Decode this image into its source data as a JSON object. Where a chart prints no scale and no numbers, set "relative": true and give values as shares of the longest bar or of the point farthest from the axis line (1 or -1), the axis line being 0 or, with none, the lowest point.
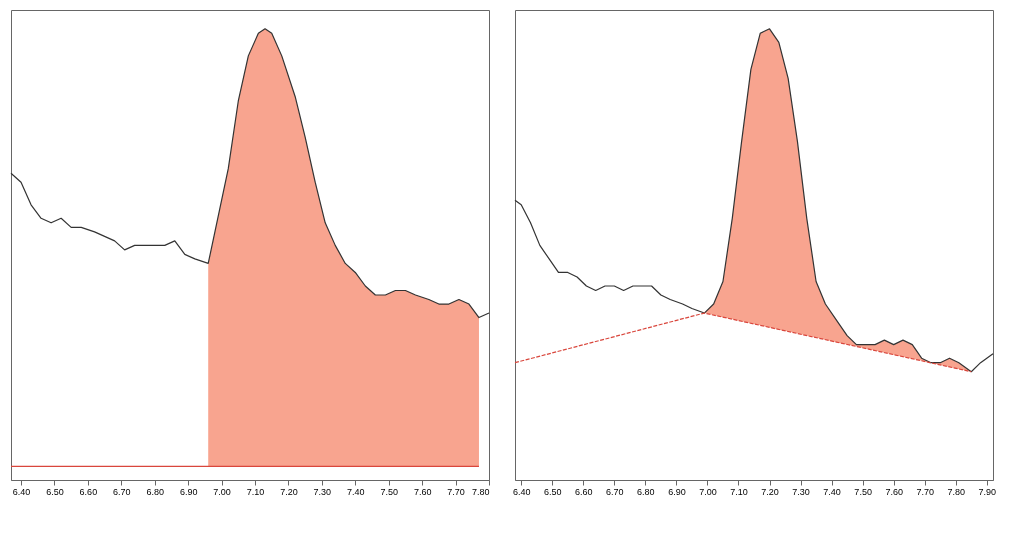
{
  "chart_data": [
    {
      "type": "line",
      "relative": true,
      "xlim": [
        6.37,
        7.8
      ],
      "xticks": [
        {
          "value": 6.4,
          "label": "6.40"
        },
        {
          "value": 6.5,
          "label": "6.50"
        },
        {
          "value": 6.6,
          "label": "6.60"
        },
        {
          "value": 6.7,
          "label": "6.70"
        },
        {
          "value": 6.8,
          "label": "6.80"
        },
        {
          "value": 6.9,
          "label": "6.90"
        },
        {
          "value": 7.0,
          "label": "7.00"
        },
        {
          "value": 7.1,
          "label": "7.10"
        },
        {
          "value": 7.2,
          "label": "7.20"
        },
        {
          "value": 7.3,
          "label": "7.30"
        },
        {
          "value": 7.4,
          "label": "7.40"
        },
        {
          "value": 7.5,
          "label": "7.50"
        },
        {
          "value": 7.6,
          "label": "7.60"
        },
        {
          "value": 7.7,
          "label": "7.70"
        },
        {
          "value": 7.8,
          "label": "7.80"
        }
      ],
      "grid": false,
      "series": [
        {
          "type": "area",
          "color": "#f8a48f",
          "x": [
            6.96,
            6.98,
            7.02,
            7.05,
            7.08,
            7.11,
            7.13,
            7.15,
            7.18,
            7.22,
            7.25,
            7.28,
            7.31,
            7.34,
            7.37,
            7.4,
            7.43,
            7.46,
            7.49,
            7.52,
            7.55,
            7.58,
            7.62,
            7.65,
            7.68,
            7.71,
            7.74,
            7.77
          ],
          "values": [
            0.48,
            0.55,
            0.69,
            0.84,
            0.94,
            0.99,
            1,
            0.99,
            0.94,
            0.85,
            0.76,
            0.66,
            0.57,
            0.52,
            0.48,
            0.46,
            0.43,
            0.41,
            0.41,
            0.42,
            0.42,
            0.41,
            0.4,
            0.39,
            0.39,
            0.4,
            0.39,
            0.36
          ]
        },
        {
          "type": "line",
          "color": "#d9463c",
          "line_style": "solid",
          "x": [
            6.37,
            7.77
          ],
          "values": [
            0.03,
            0.03
          ]
        },
        {
          "type": "line",
          "color": "#333333",
          "line_style": "solid",
          "x": [
            6.37,
            6.4,
            6.43,
            6.46,
            6.49,
            6.52,
            6.55,
            6.58,
            6.62,
            6.65,
            6.68,
            6.71,
            6.74,
            6.77,
            6.8,
            6.83,
            6.86,
            6.89,
            6.92,
            6.96,
            6.98,
            7.02,
            7.05,
            7.08,
            7.11,
            7.13,
            7.15,
            7.18,
            7.22,
            7.25,
            7.28,
            7.31,
            7.34,
            7.37,
            7.4,
            7.43,
            7.46,
            7.49,
            7.52,
            7.55,
            7.58,
            7.62,
            7.65,
            7.68,
            7.71,
            7.74,
            7.77,
            7.8
          ],
          "values": [
            0.68,
            0.66,
            0.61,
            0.58,
            0.57,
            0.58,
            0.56,
            0.56,
            0.55,
            0.54,
            0.53,
            0.51,
            0.52,
            0.52,
            0.52,
            0.52,
            0.53,
            0.5,
            0.49,
            0.48,
            0.55,
            0.69,
            0.84,
            0.94,
            0.99,
            1,
            0.99,
            0.94,
            0.85,
            0.76,
            0.66,
            0.57,
            0.52,
            0.48,
            0.46,
            0.43,
            0.41,
            0.41,
            0.42,
            0.42,
            0.41,
            0.4,
            0.39,
            0.39,
            0.4,
            0.39,
            0.36,
            0.37
          ]
        }
      ]
    },
    {
      "type": "line",
      "relative": true,
      "xlim": [
        6.38,
        7.92
      ],
      "xticks": [
        {
          "value": 6.4,
          "label": "6.40"
        },
        {
          "value": 6.5,
          "label": "6.50"
        },
        {
          "value": 6.6,
          "label": "6.60"
        },
        {
          "value": 6.7,
          "label": "6.70"
        },
        {
          "value": 6.8,
          "label": "6.80"
        },
        {
          "value": 6.9,
          "label": "6.90"
        },
        {
          "value": 7.0,
          "label": "7.00"
        },
        {
          "value": 7.1,
          "label": "7.10"
        },
        {
          "value": 7.2,
          "label": "7.20"
        },
        {
          "value": 7.3,
          "label": "7.30"
        },
        {
          "value": 7.4,
          "label": "7.40"
        },
        {
          "value": 7.5,
          "label": "7.50"
        },
        {
          "value": 7.6,
          "label": "7.60"
        },
        {
          "value": 7.7,
          "label": "7.70"
        },
        {
          "value": 7.8,
          "label": "7.80"
        },
        {
          "value": 7.9,
          "label": "7.90"
        }
      ],
      "grid": false,
      "series": [
        {
          "type": "area",
          "color": "#f8a48f",
          "x": [
            6.99,
            7.02,
            7.05,
            7.08,
            7.11,
            7.14,
            7.17,
            7.2,
            7.23,
            7.26,
            7.29,
            7.32,
            7.35,
            7.38,
            7.42,
            7.45,
            7.48,
            7.51,
            7.54,
            7.57,
            7.6,
            7.63,
            7.66,
            7.69,
            7.72,
            7.75,
            7.78,
            7.81,
            7.85
          ],
          "values": [
            0.37,
            0.39,
            0.44,
            0.58,
            0.75,
            0.91,
            0.99,
            1,
            0.97,
            0.89,
            0.75,
            0.58,
            0.44,
            0.39,
            0.35,
            0.32,
            0.3,
            0.3,
            0.3,
            0.31,
            0.3,
            0.31,
            0.3,
            0.27,
            0.26,
            0.26,
            0.27,
            0.26,
            0.24
          ]
        },
        {
          "type": "line",
          "color": "#d9463c",
          "line_style": "dashed",
          "x": [
            6.38,
            6.99,
            7.85
          ],
          "values": [
            0.26,
            0.37,
            0.24
          ]
        },
        {
          "type": "line",
          "color": "#333333",
          "line_style": "solid",
          "x": [
            6.38,
            6.4,
            6.43,
            6.46,
            6.49,
            6.52,
            6.55,
            6.58,
            6.61,
            6.64,
            6.67,
            6.7,
            6.73,
            6.76,
            6.79,
            6.82,
            6.85,
            6.88,
            6.92,
            6.95,
            6.99,
            7.02,
            7.05,
            7.08,
            7.11,
            7.14,
            7.17,
            7.2,
            7.23,
            7.26,
            7.29,
            7.32,
            7.35,
            7.38,
            7.42,
            7.45,
            7.48,
            7.51,
            7.54,
            7.57,
            7.6,
            7.63,
            7.66,
            7.69,
            7.72,
            7.75,
            7.78,
            7.81,
            7.85,
            7.88,
            7.92
          ],
          "values": [
            0.62,
            0.61,
            0.57,
            0.52,
            0.49,
            0.46,
            0.46,
            0.45,
            0.43,
            0.42,
            0.43,
            0.43,
            0.42,
            0.43,
            0.43,
            0.43,
            0.41,
            0.4,
            0.39,
            0.38,
            0.37,
            0.39,
            0.44,
            0.58,
            0.75,
            0.91,
            0.99,
            1,
            0.97,
            0.89,
            0.75,
            0.58,
            0.44,
            0.39,
            0.35,
            0.32,
            0.3,
            0.3,
            0.3,
            0.31,
            0.3,
            0.31,
            0.3,
            0.27,
            0.26,
            0.26,
            0.27,
            0.26,
            0.24,
            0.26,
            0.28
          ]
        }
      ]
    }
  ]
}
